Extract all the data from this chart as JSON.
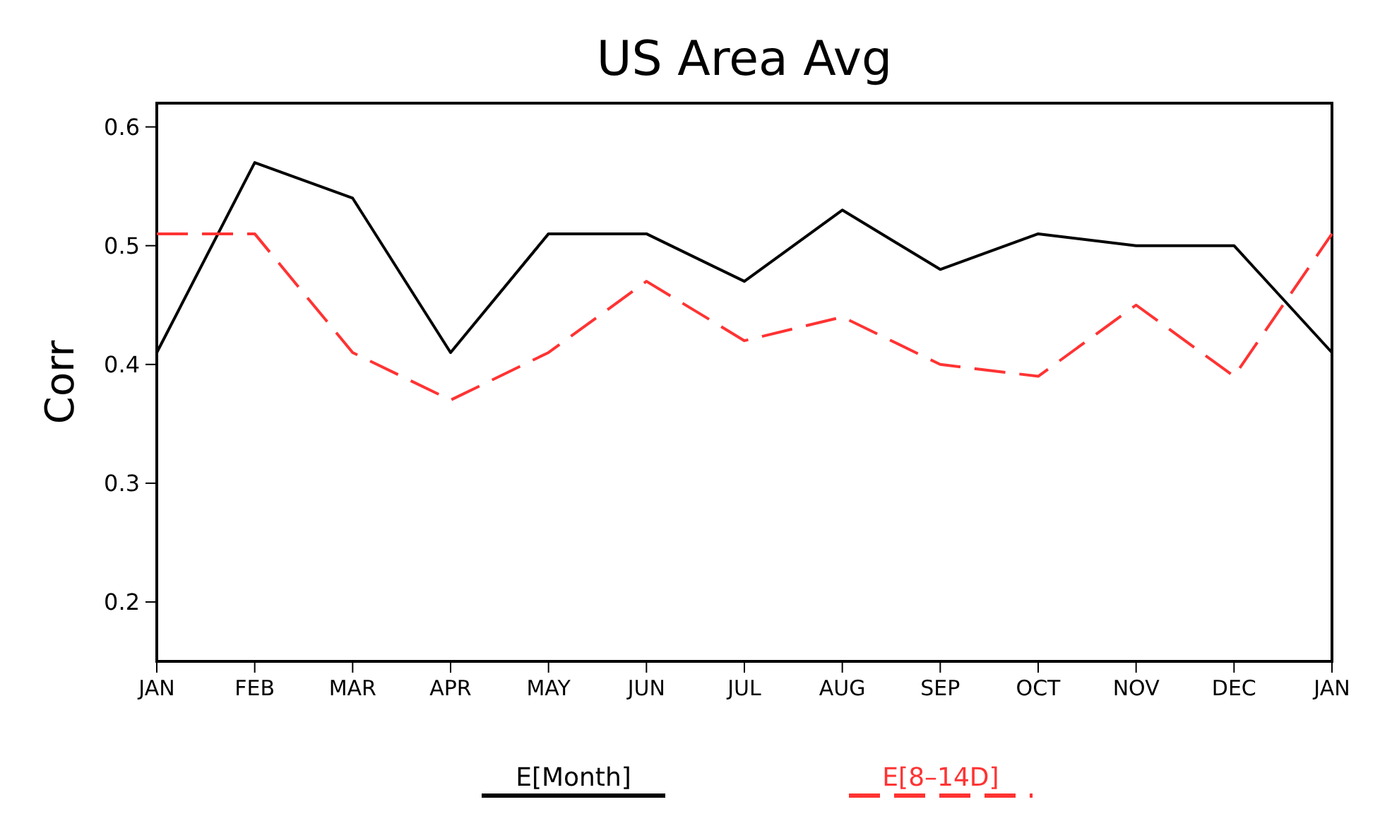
{
  "chart_data": {
    "type": "line",
    "title": "US Area Avg",
    "ylabel": "Corr",
    "categories": [
      "JAN",
      "FEB",
      "MAR",
      "APR",
      "MAY",
      "JUN",
      "JUL",
      "AUG",
      "SEP",
      "OCT",
      "NOV",
      "DEC",
      "JAN"
    ],
    "series": [
      {
        "name": "E[Month]",
        "color": "#000000",
        "line_style": "solid",
        "values": [
          0.41,
          0.57,
          0.54,
          0.41,
          0.51,
          0.51,
          0.47,
          0.53,
          0.48,
          0.51,
          0.5,
          0.5,
          0.41
        ]
      },
      {
        "name": "E[8–14D]",
        "color": "#ff3333",
        "line_style": "dashed",
        "values": [
          0.51,
          0.51,
          0.41,
          0.37,
          0.41,
          0.47,
          0.42,
          0.44,
          0.4,
          0.39,
          0.45,
          0.39,
          0.51
        ]
      }
    ],
    "ylim": [
      0.15,
      0.62
    ],
    "yticks": [
      0.2,
      0.3,
      0.4,
      0.5,
      0.6
    ],
    "grid": false,
    "legend": "bottom",
    "marker": "none"
  }
}
